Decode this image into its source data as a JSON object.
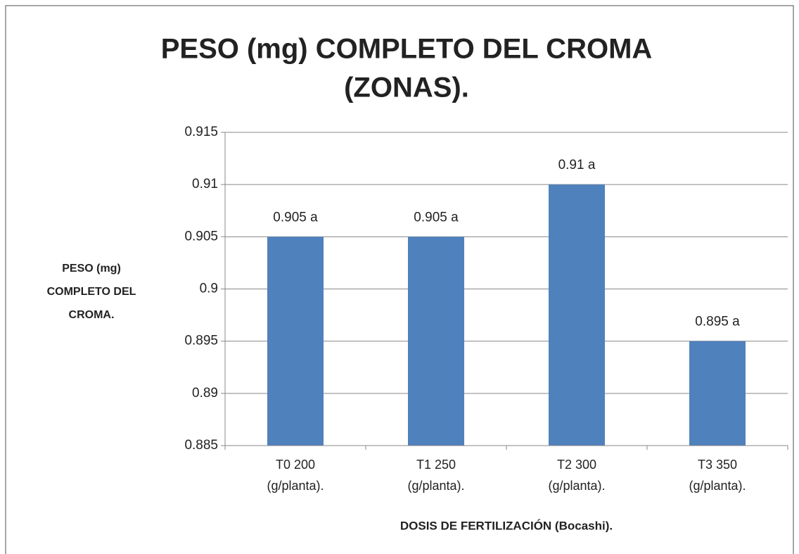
{
  "chart_data": {
    "type": "bar",
    "title": [
      "PESO (mg) COMPLETO DEL CROMA",
      "(ZONAS)."
    ],
    "y_label": [
      "PESO (mg)",
      "COMPLETO DEL",
      "CROMA."
    ],
    "x_label": "DOSIS DE FERTILIZACIÓN (Bocashi).",
    "categories": [
      [
        "T0   200",
        "(g/planta)."
      ],
      [
        "T1   250",
        "(g/planta)."
      ],
      [
        "T2   300",
        "(g/planta)."
      ],
      [
        "T3   350",
        "(g/planta)."
      ]
    ],
    "values": [
      0.905,
      0.905,
      0.91,
      0.895
    ],
    "value_labels": [
      "0.905 a",
      "0.905 a",
      "0.91 a",
      "0.895 a"
    ],
    "color": "#4f81bd",
    "ylim": [
      0.885,
      0.915
    ],
    "yticks": [
      0.885,
      0.89,
      0.895,
      0.9,
      0.905,
      0.91,
      0.915
    ],
    "grid": true
  }
}
